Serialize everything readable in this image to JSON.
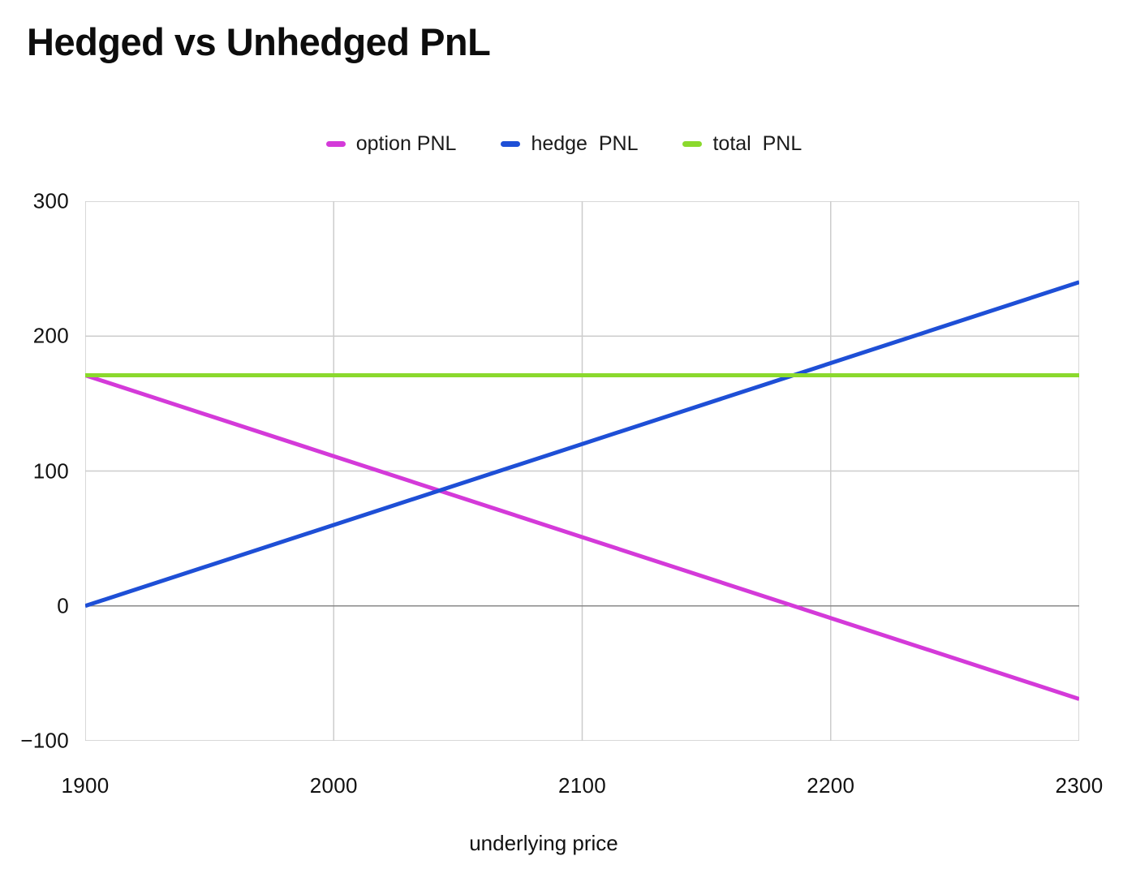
{
  "title": "Hedged vs Unhedged PnL",
  "legend": {
    "items": [
      {
        "label": "option PNL",
        "color": "#d43ad9"
      },
      {
        "label": "hedge  PNL",
        "color": "#1e4fd6"
      },
      {
        "label": "total  PNL",
        "color": "#8bd92d"
      }
    ]
  },
  "chart_data": {
    "type": "line",
    "title": "Hedged vs Unhedged PnL",
    "xlabel": "underlying price",
    "ylabel": "",
    "x": [
      1900,
      2000,
      2100,
      2200,
      2300
    ],
    "series": [
      {
        "name": "option PNL",
        "color": "#d43ad9",
        "values": [
          171,
          111,
          51,
          -9,
          -69
        ]
      },
      {
        "name": "hedge PNL",
        "color": "#1e4fd6",
        "values": [
          0,
          60,
          120,
          180,
          240
        ]
      },
      {
        "name": "total PNL",
        "color": "#8bd92d",
        "values": [
          171,
          171,
          171,
          171,
          171
        ]
      }
    ],
    "xlim": [
      1900,
      2300
    ],
    "ylim": [
      -100,
      300
    ],
    "xticks": [
      1900,
      2000,
      2100,
      2200,
      2300
    ],
    "yticks": [
      300,
      200,
      100,
      0,
      -100
    ],
    "xtick_labels": [
      "1900",
      "2000",
      "2100",
      "2200",
      "2300"
    ],
    "ytick_labels": [
      "300",
      "200",
      "100",
      "0",
      "−100"
    ],
    "grid": true,
    "legend_position": "top",
    "style": {
      "grid_color": "#cccccc",
      "zero_line_color": "#888888",
      "line_width": 5,
      "text_color": "#111111",
      "background": "#ffffff"
    }
  }
}
